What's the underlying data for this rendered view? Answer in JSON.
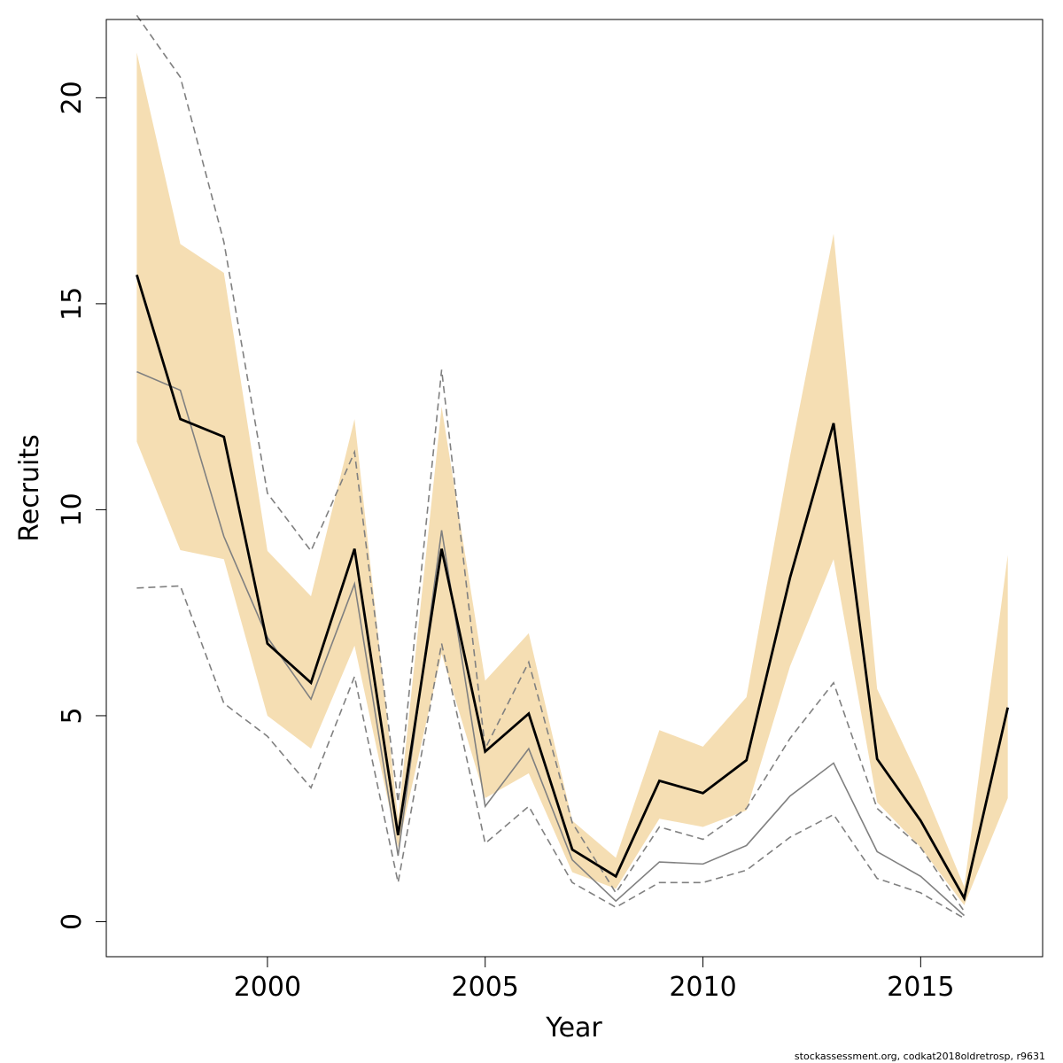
{
  "chart_data": {
    "type": "line",
    "xlabel": "Year",
    "ylabel": "Recruits",
    "xlim": [
      1996.3,
      2017.8
    ],
    "ylim": [
      -0.85,
      21.9
    ],
    "grid": false,
    "x_ticks": [
      2000,
      2005,
      2010,
      2015
    ],
    "y_ticks": [
      0,
      5,
      10,
      15,
      20
    ],
    "years": [
      1997,
      1998,
      1999,
      2000,
      2001,
      2002,
      2003,
      2004,
      2005,
      2006,
      2007,
      2008,
      2009,
      2010,
      2011,
      2012,
      2013,
      2014,
      2015,
      2016,
      2017
    ],
    "series": [
      {
        "style": "confidence-band",
        "color": "#f5deb3",
        "lower": [
          11.65,
          9.02,
          8.8,
          5.0,
          4.2,
          6.7,
          1.8,
          6.5,
          3.0,
          3.6,
          1.2,
          0.8,
          2.5,
          2.3,
          2.7,
          6.2,
          8.8,
          2.9,
          1.8,
          0.4,
          3.0
        ],
        "upper": [
          21.1,
          16.45,
          15.75,
          9.0,
          7.9,
          12.2,
          2.5,
          12.5,
          5.85,
          7.0,
          2.45,
          1.55,
          4.65,
          4.25,
          5.45,
          11.3,
          16.7,
          5.65,
          3.4,
          0.85,
          8.9
        ]
      },
      {
        "style": "estimate",
        "color": "#000000",
        "values": [
          15.7,
          12.2,
          11.77,
          6.75,
          5.8,
          9.05,
          2.1,
          9.05,
          4.13,
          5.05,
          1.75,
          1.1,
          3.42,
          3.12,
          3.92,
          8.35,
          12.1,
          3.95,
          2.45,
          0.57,
          5.2
        ]
      },
      {
        "style": "retro-estimate",
        "color": "#808080",
        "values": [
          13.35,
          12.9,
          9.35,
          6.9,
          5.4,
          8.2,
          1.6,
          9.5,
          2.8,
          4.2,
          1.5,
          0.5,
          1.45,
          1.4,
          1.85,
          3.05,
          3.85,
          1.7,
          1.1,
          0.15
        ]
      },
      {
        "style": "retro-upper",
        "color": "#808080",
        "dashed": true,
        "values": [
          22.0,
          20.5,
          16.5,
          10.4,
          9.0,
          11.4,
          2.9,
          13.4,
          4.2,
          6.3,
          2.4,
          0.7,
          2.3,
          2.0,
          2.75,
          4.45,
          5.8,
          2.75,
          1.8,
          0.25
        ]
      },
      {
        "style": "retro-lower",
        "color": "#808080",
        "dashed": true,
        "values": [
          8.1,
          8.15,
          5.3,
          4.5,
          3.25,
          5.95,
          0.95,
          6.75,
          1.9,
          2.8,
          0.95,
          0.35,
          0.95,
          0.95,
          1.25,
          2.05,
          2.6,
          1.05,
          0.7,
          0.08
        ]
      }
    ]
  },
  "footer": {
    "text": "stockassessment.org, codkat2018oldretrosp, r9631"
  }
}
